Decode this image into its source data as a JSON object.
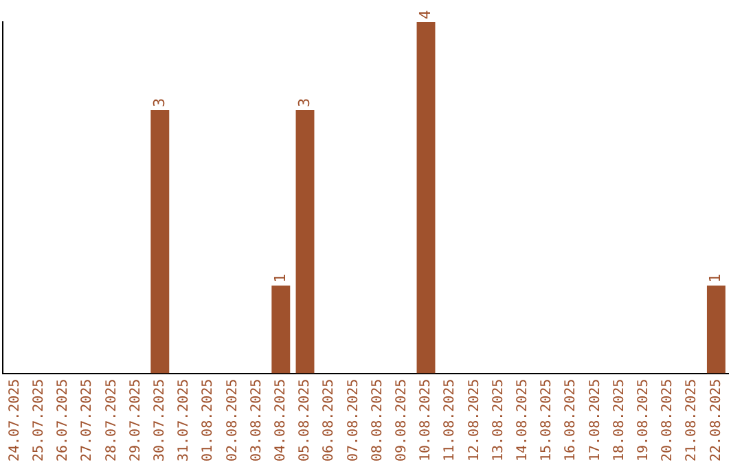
{
  "chart_data": {
    "type": "bar",
    "categories": [
      "24.07.2025",
      "25.07.2025",
      "26.07.2025",
      "27.07.2025",
      "28.07.2025",
      "29.07.2025",
      "30.07.2025",
      "31.07.2025",
      "01.08.2025",
      "02.08.2025",
      "03.08.2025",
      "04.08.2025",
      "05.08.2025",
      "06.08.2025",
      "07.08.2025",
      "08.08.2025",
      "09.08.2025",
      "10.08.2025",
      "11.08.2025",
      "12.08.2025",
      "13.08.2025",
      "14.08.2025",
      "15.08.2025",
      "16.08.2025",
      "17.08.2025",
      "18.08.2025",
      "19.08.2025",
      "20.08.2025",
      "21.08.2025",
      "22.08.2025"
    ],
    "values": [
      0,
      0,
      0,
      0,
      0,
      0,
      3,
      0,
      0,
      0,
      0,
      1,
      3,
      0,
      0,
      0,
      0,
      4,
      0,
      0,
      0,
      0,
      0,
      0,
      0,
      0,
      0,
      0,
      0,
      1
    ],
    "value_labels": [
      null,
      null,
      null,
      null,
      null,
      null,
      "3",
      null,
      null,
      null,
      null,
      "1",
      "3",
      null,
      null,
      null,
      null,
      "4",
      null,
      null,
      null,
      null,
      null,
      null,
      null,
      null,
      null,
      null,
      null,
      "1"
    ],
    "color": "#a0522d",
    "grid": false,
    "legend": false,
    "tick_labels": "x"
  }
}
